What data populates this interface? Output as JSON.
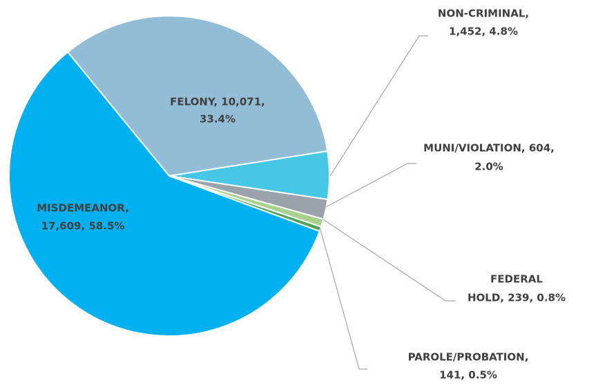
{
  "chart_data": {
    "type": "pie",
    "categories": [
      "FELONY",
      "NON-CRIMINAL",
      "MUNI/VIOLATION",
      "FEDERAL HOLD",
      "PAROLE/PROBATION",
      "MISDEMEANOR"
    ],
    "values": [
      10071,
      1452,
      604,
      239,
      141,
      17609
    ],
    "labels": [
      [
        "FELONY, 10,071,",
        "33.4%"
      ],
      [
        "NON-CRIMINAL,",
        "1,452, 4.8%"
      ],
      [
        "MUNI/VIOLATION, 604,",
        "2.0%"
      ],
      [
        "FEDERAL",
        "HOLD, 239, 0.8%"
      ],
      [
        "PAROLE/PROBATION,",
        "141, 0.5%"
      ],
      [
        "MISDEMEANOR,",
        "17,609, 58.5%"
      ]
    ],
    "colors": [
      "#93bdd7",
      "#45c7e5",
      "#9aa2ac",
      "#a9d18e",
      "#4ea35a",
      "#00b0f0"
    ]
  }
}
